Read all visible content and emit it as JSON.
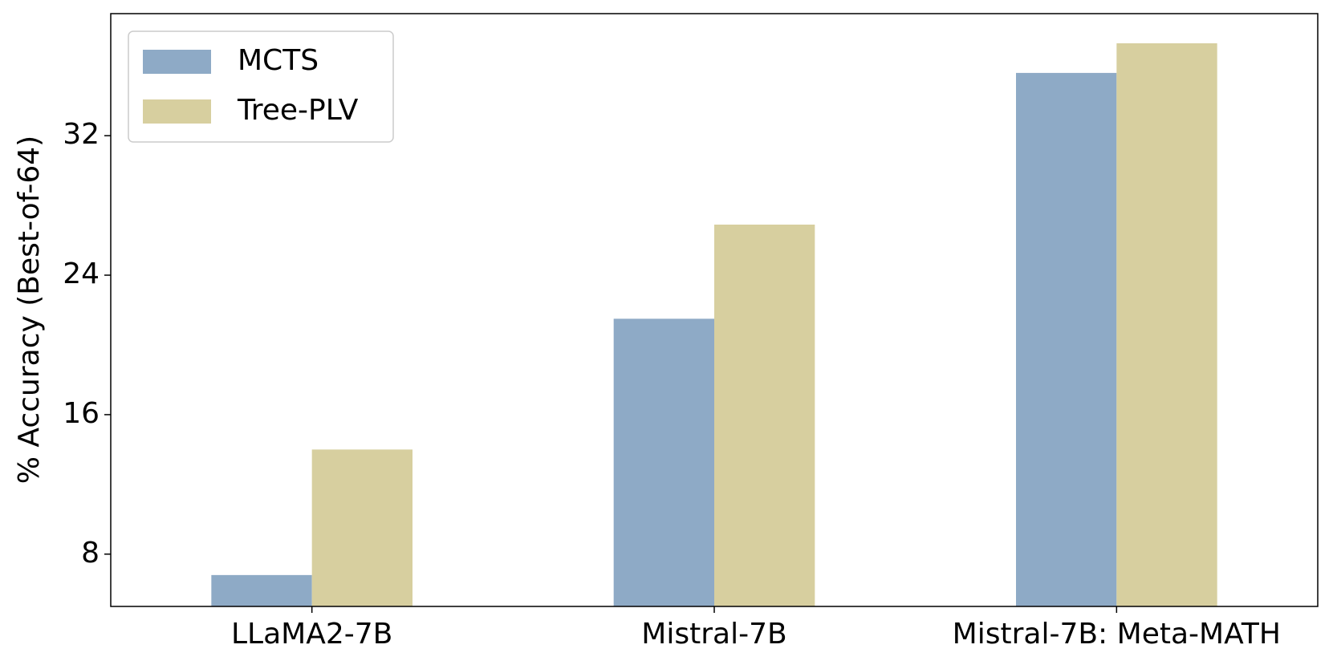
{
  "chart_data": {
    "type": "bar",
    "y_label": "% Accuracy (Best-of-64)",
    "categories": [
      "LLaMA2-7B",
      "Mistral-7B",
      "Mistral-7B: Meta-MATH"
    ],
    "series": [
      {
        "name": "MCTS",
        "color": "#8eaac6",
        "values": [
          6.8,
          21.5,
          35.6
        ]
      },
      {
        "name": "Tree-PLV",
        "color": "#d7cf9f",
        "values": [
          14.0,
          26.9,
          37.3
        ]
      }
    ],
    "ylim": [
      5,
      39
    ],
    "yticks": [
      8,
      16,
      24,
      32
    ],
    "legend": "upper left"
  }
}
